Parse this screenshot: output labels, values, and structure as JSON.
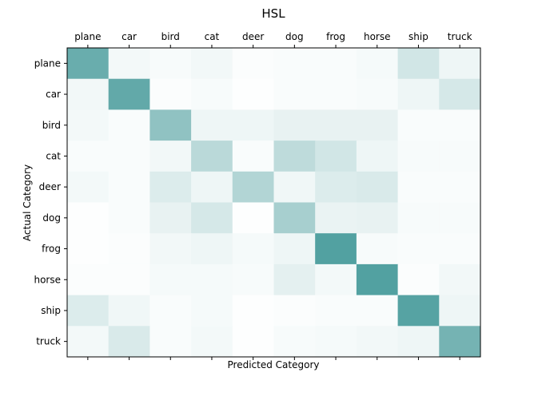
{
  "chart_data": {
    "type": "heatmap",
    "title": "HSL",
    "xlabel": "Predicted Category",
    "ylabel": "Actual Category",
    "x_categories": [
      "plane",
      "car",
      "bird",
      "cat",
      "deer",
      "dog",
      "frog",
      "horse",
      "ship",
      "truck"
    ],
    "y_categories": [
      "plane",
      "car",
      "bird",
      "cat",
      "deer",
      "dog",
      "frog",
      "horse",
      "ship",
      "truck"
    ],
    "x_axis_position": "top",
    "grid": false,
    "legend": "none",
    "colormap": {
      "low": "#ffffff",
      "high": "#3f9696"
    },
    "value_range": [
      0,
      1
    ],
    "values": [
      [
        0.78,
        0.06,
        0.04,
        0.07,
        0.02,
        0.03,
        0.03,
        0.05,
        0.24,
        0.09
      ],
      [
        0.07,
        0.82,
        0.02,
        0.04,
        0.01,
        0.03,
        0.03,
        0.04,
        0.09,
        0.22
      ],
      [
        0.06,
        0.03,
        0.58,
        0.09,
        0.09,
        0.12,
        0.12,
        0.12,
        0.03,
        0.03
      ],
      [
        0.03,
        0.03,
        0.07,
        0.36,
        0.03,
        0.34,
        0.24,
        0.09,
        0.04,
        0.04
      ],
      [
        0.06,
        0.03,
        0.18,
        0.09,
        0.4,
        0.08,
        0.18,
        0.2,
        0.03,
        0.03
      ],
      [
        0.01,
        0.03,
        0.12,
        0.22,
        0.01,
        0.46,
        0.11,
        0.12,
        0.04,
        0.04
      ],
      [
        0.01,
        0.02,
        0.07,
        0.09,
        0.05,
        0.09,
        0.9,
        0.04,
        0.03,
        0.03
      ],
      [
        0.02,
        0.02,
        0.05,
        0.05,
        0.04,
        0.14,
        0.06,
        0.9,
        0.02,
        0.07
      ],
      [
        0.18,
        0.08,
        0.03,
        0.05,
        0.01,
        0.02,
        0.03,
        0.03,
        0.88,
        0.09
      ],
      [
        0.06,
        0.2,
        0.03,
        0.06,
        0.01,
        0.04,
        0.05,
        0.07,
        0.09,
        0.72
      ]
    ]
  }
}
